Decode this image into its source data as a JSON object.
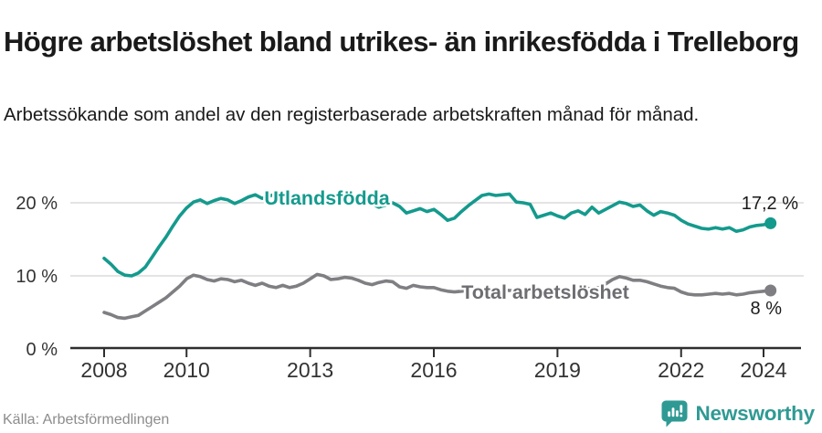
{
  "header": {
    "title": "Högre arbetslöshet bland utrikes- än inrikesfödda i Trelleborg",
    "subtitle": "Arbetssökande som andel av den registerbaserade arbetskraften månad för månad."
  },
  "footer": {
    "source": "Källa: Arbetsförmedlingen",
    "logo_text": "Newsworthy",
    "logo_icon": "newsworthy-speech-bubble-bar-chart-icon"
  },
  "colors": {
    "axis": "#333333",
    "axis_line": "#2e2e2e",
    "grid": "#dcdcdc",
    "end_label_text": "#1a1a1a",
    "source_text": "#8c8c8c",
    "brand_teal": "#2f9a93"
  },
  "chart_data": {
    "type": "line",
    "title": "Högre arbetslöshet bland utrikes- än inrikesfödda i Trelleborg",
    "subtitle": "Arbetssökande som andel av den registerbaserade arbetskraften månad för månad.",
    "x_unit": "year, monthly observations",
    "x_start": 2008.0,
    "x_step": 0.1667,
    "x_ticks": [
      2008,
      2010,
      2013,
      2016,
      2019,
      2022,
      2024
    ],
    "y_ticks": [
      {
        "value": 0,
        "label": "0 %"
      },
      {
        "value": 10,
        "label": "10 %"
      },
      {
        "value": 20,
        "label": "20 %"
      }
    ],
    "ylim": [
      0,
      24
    ],
    "grid": true,
    "legend_position": "inline-labels",
    "series": [
      {
        "name": "Utlandsfödda",
        "color": "#149a8d",
        "label_color": "#149a8d",
        "end_label": "17,2 %",
        "values": [
          12.4,
          11.6,
          10.6,
          10.1,
          10.0,
          10.4,
          11.2,
          12.6,
          14.0,
          15.3,
          16.8,
          18.2,
          19.3,
          20.1,
          20.4,
          19.9,
          20.3,
          20.6,
          20.4,
          19.9,
          20.3,
          20.8,
          21.1,
          20.6,
          20.9,
          21.2,
          20.7,
          20.4,
          20.8,
          21.0,
          20.6,
          20.9,
          20.5,
          20.7,
          21.0,
          20.6,
          20.8,
          20.4,
          20.0,
          19.8,
          19.4,
          19.7,
          20.0,
          19.5,
          18.6,
          18.9,
          19.2,
          18.8,
          19.1,
          18.4,
          17.6,
          17.9,
          18.8,
          19.6,
          20.3,
          21.0,
          21.2,
          21.0,
          21.1,
          21.2,
          20.1,
          20.0,
          19.8,
          18.0,
          18.3,
          18.6,
          18.2,
          17.9,
          18.6,
          18.9,
          18.4,
          19.4,
          18.6,
          19.1,
          19.6,
          20.1,
          19.9,
          19.5,
          19.7,
          18.9,
          18.3,
          18.8,
          18.6,
          18.3,
          17.6,
          17.1,
          16.8,
          16.5,
          16.4,
          16.6,
          16.4,
          16.6,
          16.1,
          16.3,
          16.7,
          16.9,
          17.0,
          17.2
        ]
      },
      {
        "name": "Total arbetslöshet",
        "color": "#7f7f83",
        "label_color": "#6d6d72",
        "end_label": "8 %",
        "values": [
          5.0,
          4.7,
          4.3,
          4.2,
          4.4,
          4.6,
          5.2,
          5.8,
          6.4,
          7.0,
          7.8,
          8.6,
          9.6,
          10.1,
          9.9,
          9.5,
          9.3,
          9.6,
          9.5,
          9.2,
          9.4,
          9.0,
          8.7,
          9.0,
          8.6,
          8.4,
          8.7,
          8.4,
          8.6,
          9.0,
          9.6,
          10.2,
          10.0,
          9.5,
          9.6,
          9.8,
          9.7,
          9.4,
          9.0,
          8.8,
          9.1,
          9.3,
          9.2,
          8.5,
          8.3,
          8.7,
          8.5,
          8.4,
          8.4,
          8.1,
          7.9,
          7.8,
          7.9,
          8.0,
          8.1,
          8.0,
          7.9,
          8.0,
          8.1,
          8.0,
          8.0,
          7.9,
          7.8,
          7.9,
          8.0,
          7.9,
          8.0,
          8.1,
          8.0,
          8.1,
          8.2,
          8.3,
          8.4,
          8.9,
          9.5,
          9.9,
          9.7,
          9.4,
          9.4,
          9.2,
          8.9,
          8.6,
          8.4,
          8.3,
          7.8,
          7.5,
          7.4,
          7.4,
          7.5,
          7.6,
          7.5,
          7.6,
          7.4,
          7.5,
          7.7,
          7.8,
          7.9,
          8.0
        ]
      }
    ]
  }
}
